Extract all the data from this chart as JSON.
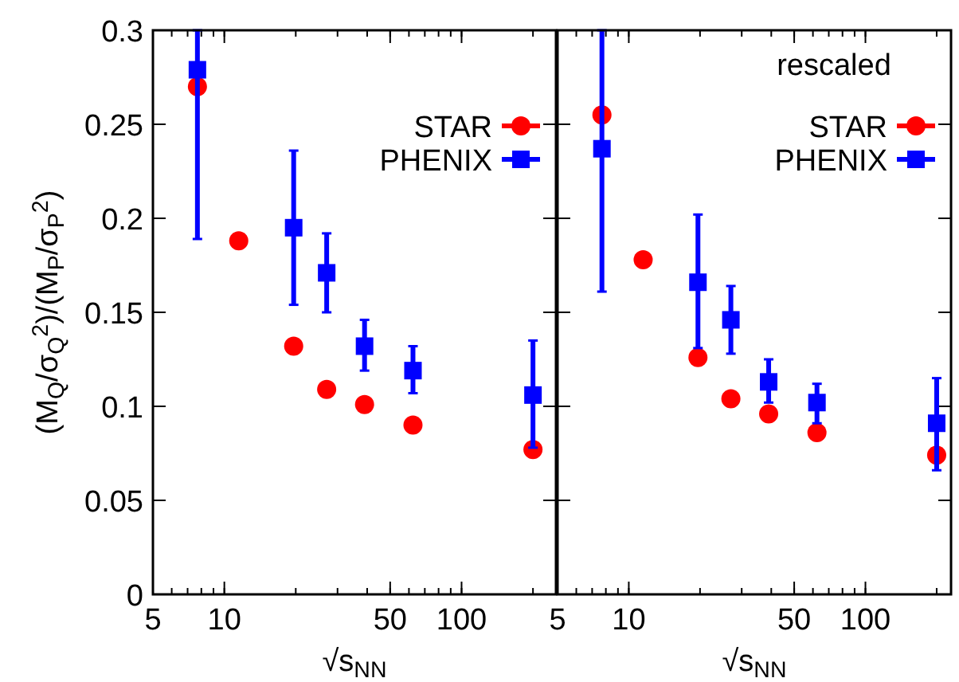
{
  "chart_data": [
    {
      "type": "scatter",
      "xlabel": "√s$_{NN}$",
      "ylabel": "(M$_{Q}$/σ$_{Q}$$^{2}$)/(M$_{P}$/σ$_{P}$$^{2}$)",
      "log": "x",
      "xlim": [
        5,
        250
      ],
      "xticks": [
        5,
        10,
        50,
        100
      ],
      "ylim": [
        0,
        0.3
      ],
      "yticks": [
        0,
        0.05,
        0.1,
        0.15,
        0.2,
        0.25,
        0.3
      ],
      "legend": "top right",
      "grid": false,
      "series": [
        {
          "name": "STAR",
          "color": "#ff0000",
          "marker": "circle",
          "x": [
            7.7,
            11.5,
            19.6,
            27,
            39,
            62.4,
            200
          ],
          "values": [
            0.27,
            0.188,
            0.132,
            0.109,
            0.101,
            0.09,
            0.077
          ]
        },
        {
          "name": "PHENIX",
          "color": "#0000ff",
          "marker": "square",
          "x": [
            7.7,
            19.6,
            27,
            39,
            62.4,
            200
          ],
          "values": [
            0.279,
            0.195,
            0.171,
            0.132,
            0.119,
            0.106
          ],
          "errors": [
            [
              0.189,
              0.3
            ],
            [
              0.154,
              0.236
            ],
            [
              0.15,
              0.192
            ],
            [
              0.119,
              0.146
            ],
            [
              0.107,
              0.132
            ],
            [
              0.078,
              0.135
            ]
          ]
        }
      ]
    },
    {
      "type": "scatter",
      "xlabel": "√s$_{NN}$",
      "log": "x",
      "xlim": [
        5,
        230
      ],
      "xticks": [
        5,
        10,
        50,
        100
      ],
      "ylim": [
        0,
        0.3
      ],
      "yticks": [
        0,
        0.05,
        0.1,
        0.15,
        0.2,
        0.25,
        0.3
      ],
      "tick_labels": "x",
      "legend": "top right",
      "grid": false,
      "annotations": [
        "rescaled"
      ],
      "series": [
        {
          "name": "STAR",
          "color": "#ff0000",
          "marker": "circle",
          "x": [
            7.7,
            11.5,
            19.6,
            27,
            39,
            62.4,
            200
          ],
          "values": [
            0.255,
            0.178,
            0.126,
            0.104,
            0.096,
            0.086,
            0.074
          ]
        },
        {
          "name": "PHENIX",
          "color": "#0000ff",
          "marker": "square",
          "x": [
            7.7,
            19.6,
            27,
            39,
            62.4,
            200
          ],
          "values": [
            0.237,
            0.166,
            0.146,
            0.113,
            0.102,
            0.091
          ],
          "errors": [
            [
              0.161,
              0.3
            ],
            [
              0.131,
              0.202
            ],
            [
              0.128,
              0.164
            ],
            [
              0.102,
              0.125
            ],
            [
              0.091,
              0.112
            ],
            [
              0.066,
              0.115
            ]
          ]
        }
      ]
    }
  ]
}
